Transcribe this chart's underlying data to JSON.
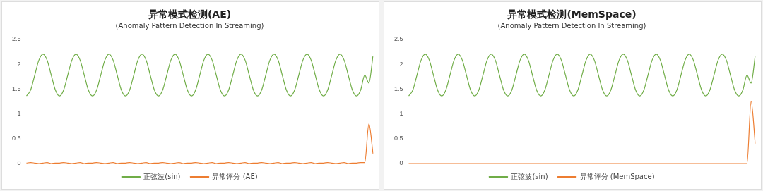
{
  "chart_data": [
    {
      "type": "line",
      "title": "异常模式检测(AE)",
      "subtitle": "(Anomaly Pattern Detection In Streaming)",
      "categories": [
        null,
        null,
        null,
        null,
        null,
        null,
        null,
        null,
        null,
        null,
        null,
        null,
        null,
        null,
        null,
        null,
        null,
        null,
        null,
        null,
        null,
        null,
        null,
        null,
        null,
        null,
        null,
        null,
        null,
        null,
        null,
        null,
        null,
        null,
        null,
        null,
        null,
        null,
        null,
        null,
        null,
        null,
        null,
        null,
        null,
        null,
        null,
        null,
        null,
        null,
        null,
        null,
        null,
        null,
        null,
        null,
        null,
        null,
        null,
        null,
        null,
        null,
        null,
        null,
        null,
        null,
        null,
        null,
        null,
        null,
        null,
        null,
        null,
        null,
        null,
        null,
        null,
        null,
        null,
        null,
        null,
        null,
        null,
        null,
        null
      ],
      "series": [
        {
          "name": "正弦波(sin)",
          "color": "#70ad47",
          "values": [
            1.36,
            1.48,
            1.78,
            2.08,
            2.2,
            2.08,
            1.78,
            1.48,
            1.36,
            1.48,
            1.78,
            2.08,
            2.2,
            2.08,
            1.78,
            1.48,
            1.36,
            1.48,
            1.78,
            2.08,
            2.2,
            2.08,
            1.78,
            1.48,
            1.36,
            1.48,
            1.78,
            2.08,
            2.2,
            2.08,
            1.78,
            1.48,
            1.36,
            1.48,
            1.78,
            2.08,
            2.2,
            2.08,
            1.78,
            1.48,
            1.36,
            1.48,
            1.78,
            2.08,
            2.2,
            2.08,
            1.78,
            1.48,
            1.36,
            1.48,
            1.78,
            2.08,
            2.2,
            2.08,
            1.78,
            1.48,
            1.36,
            1.48,
            1.78,
            2.08,
            2.2,
            2.08,
            1.78,
            1.48,
            1.36,
            1.48,
            1.78,
            2.08,
            2.2,
            2.08,
            1.78,
            1.48,
            1.36,
            1.48,
            1.78,
            2.08,
            2.2,
            2.08,
            1.78,
            1.48,
            1.36,
            1.48,
            1.78,
            1.62,
            2.17
          ]
        },
        {
          "name": "异常评分 (AE)",
          "color": "#ed7d31",
          "values": [
            0.01,
            0.02,
            0.01,
            0,
            0.01,
            0.02,
            0,
            0.01,
            0.01,
            0.02,
            0.01,
            0,
            0.01,
            0.02,
            0,
            0.01,
            0.01,
            0.02,
            0.01,
            0,
            0.01,
            0.02,
            0,
            0.01,
            0.01,
            0.02,
            0.01,
            0,
            0.01,
            0.02,
            0,
            0.01,
            0.01,
            0.02,
            0.01,
            0,
            0.01,
            0.02,
            0,
            0.01,
            0.01,
            0.02,
            0.01,
            0,
            0.01,
            0.02,
            0,
            0.01,
            0.01,
            0.02,
            0.01,
            0,
            0.01,
            0.02,
            0,
            0.01,
            0.01,
            0.02,
            0.01,
            0,
            0.01,
            0.02,
            0,
            0.01,
            0.01,
            0.02,
            0.01,
            0,
            0.01,
            0.02,
            0,
            0.01,
            0.01,
            0.02,
            0.01,
            0,
            0.01,
            0.02,
            0,
            0.01,
            0.01,
            0.02,
            0.02,
            0.8,
            0.2
          ]
        }
      ],
      "ylim": [
        0,
        2.5
      ],
      "yticks": [
        0,
        0.5,
        1,
        1.5,
        2,
        2.5
      ],
      "grid": false,
      "legend": "bottom",
      "marker": "none",
      "line_style": "solid",
      "tick_labels": "y"
    },
    {
      "type": "line",
      "title": "异常模式检测(MemSpace)",
      "subtitle": "(Anomaly Pattern Detection In Streaming)",
      "categories": [
        null,
        null,
        null,
        null,
        null,
        null,
        null,
        null,
        null,
        null,
        null,
        null,
        null,
        null,
        null,
        null,
        null,
        null,
        null,
        null,
        null,
        null,
        null,
        null,
        null,
        null,
        null,
        null,
        null,
        null,
        null,
        null,
        null,
        null,
        null,
        null,
        null,
        null,
        null,
        null,
        null,
        null,
        null,
        null,
        null,
        null,
        null,
        null,
        null,
        null,
        null,
        null,
        null,
        null,
        null,
        null,
        null,
        null,
        null,
        null,
        null,
        null,
        null,
        null,
        null,
        null,
        null,
        null,
        null,
        null,
        null,
        null,
        null,
        null,
        null,
        null,
        null,
        null,
        null,
        null,
        null,
        null,
        null,
        null,
        null
      ],
      "series": [
        {
          "name": "正弦波(sin)",
          "color": "#70ad47",
          "values": [
            1.36,
            1.48,
            1.78,
            2.08,
            2.2,
            2.08,
            1.78,
            1.48,
            1.36,
            1.48,
            1.78,
            2.08,
            2.2,
            2.08,
            1.78,
            1.48,
            1.36,
            1.48,
            1.78,
            2.08,
            2.2,
            2.08,
            1.78,
            1.48,
            1.36,
            1.48,
            1.78,
            2.08,
            2.2,
            2.08,
            1.78,
            1.48,
            1.36,
            1.48,
            1.78,
            2.08,
            2.2,
            2.08,
            1.78,
            1.48,
            1.36,
            1.48,
            1.78,
            2.08,
            2.2,
            2.08,
            1.78,
            1.48,
            1.36,
            1.48,
            1.78,
            2.08,
            2.2,
            2.08,
            1.78,
            1.48,
            1.36,
            1.48,
            1.78,
            2.08,
            2.2,
            2.08,
            1.78,
            1.48,
            1.36,
            1.48,
            1.78,
            2.08,
            2.2,
            2.08,
            1.78,
            1.48,
            1.36,
            1.48,
            1.78,
            2.08,
            2.2,
            2.08,
            1.78,
            1.48,
            1.36,
            1.48,
            1.78,
            1.62,
            2.17
          ]
        },
        {
          "name": "异常评分 (MemSpace)",
          "color": "#ed7d31",
          "values": [
            0,
            0,
            0,
            0,
            0,
            0,
            0,
            0,
            0,
            0,
            0,
            0,
            0,
            0,
            0,
            0,
            0,
            0,
            0,
            0,
            0,
            0,
            0,
            0,
            0,
            0,
            0,
            0,
            0,
            0,
            0,
            0,
            0,
            0,
            0,
            0,
            0,
            0,
            0,
            0,
            0,
            0,
            0,
            0,
            0,
            0,
            0,
            0,
            0,
            0,
            0,
            0,
            0,
            0,
            0,
            0,
            0,
            0,
            0,
            0,
            0,
            0,
            0,
            0,
            0,
            0,
            0,
            0,
            0,
            0,
            0,
            0,
            0,
            0,
            0,
            0,
            0,
            0,
            0,
            0,
            0,
            0,
            0,
            1.25,
            0.4
          ]
        }
      ],
      "ylim": [
        0,
        2.5
      ],
      "yticks": [
        0,
        0.5,
        1,
        1.5,
        2,
        2.5
      ],
      "grid": false,
      "legend": "bottom",
      "marker": "none",
      "line_style": "solid",
      "tick_labels": "y"
    }
  ]
}
